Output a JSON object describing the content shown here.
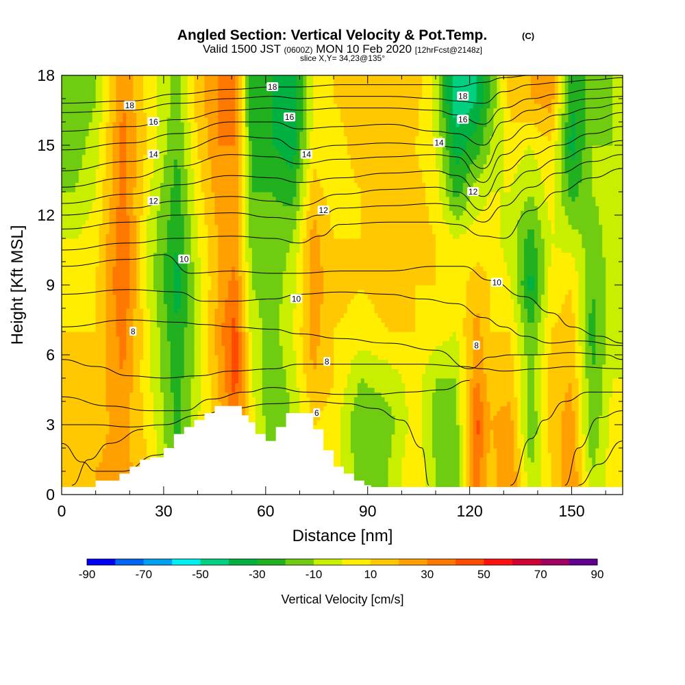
{
  "chart_data": {
    "type": "heatmap",
    "title": "Angled Section: Vertical Velocity & Pot.Temp.",
    "title_unit": "(C)",
    "subtitle_parts": [
      "Valid 1500 JST ",
      "(0600Z)",
      " MON 10 Feb 2020 ",
      "[12hrFcst@2148z]"
    ],
    "slice_text": "slice X,Y= 34,23@135°",
    "xlabel": "Distance [nm]",
    "ylabel": "Height [Kft MSL]",
    "xlim": [
      0,
      165
    ],
    "ylim": [
      0,
      18
    ],
    "xticks": [
      "0",
      "30",
      "60",
      "90",
      "120",
      "150"
    ],
    "yticks": [
      "0",
      "3",
      "6",
      "9",
      "12",
      "15",
      "18"
    ],
    "colorbar": {
      "label": "Vertical Velocity [cm/s]",
      "tick_labels": [
        "-90",
        "-70",
        "-50",
        "-30",
        "-10",
        "10",
        "30",
        "50",
        "70",
        "90"
      ],
      "colors": [
        "#0000f0",
        "#0064f0",
        "#00a0f0",
        "#00f0f0",
        "#00d080",
        "#00b040",
        "#20b020",
        "#70cc10",
        "#c8ee00",
        "#ffee00",
        "#ffc800",
        "#ffa000",
        "#ff7800",
        "#ff4b00",
        "#ff1010",
        "#d00030",
        "#a00060",
        "#600090"
      ]
    },
    "velocity_columns": [
      {
        "x": 4,
        "v": [
          15,
          15,
          10,
          10,
          5,
          0,
          -10,
          -15,
          -20
        ]
      },
      {
        "x": 10,
        "v": [
          20,
          15,
          15,
          10,
          10,
          5,
          0,
          -5,
          -10
        ]
      },
      {
        "x": 18,
        "v": [
          25,
          25,
          30,
          35,
          40,
          40,
          35,
          35,
          30
        ]
      },
      {
        "x": 26,
        "v": [
          10,
          5,
          0,
          0,
          -5,
          -5,
          0,
          5,
          5
        ]
      },
      {
        "x": 34,
        "v": [
          -20,
          -25,
          -25,
          -30,
          -35,
          -30,
          -25,
          -20,
          -15
        ]
      },
      {
        "x": 40,
        "v": [
          5,
          0,
          -5,
          -5,
          -5,
          0,
          5,
          10,
          15
        ]
      },
      {
        "x": 46,
        "v": [
          10,
          15,
          20,
          25,
          20,
          20,
          25,
          30,
          30
        ]
      },
      {
        "x": 51,
        "v": [
          25,
          35,
          45,
          45,
          35,
          25,
          25,
          30,
          30
        ]
      },
      {
        "x": 56,
        "v": [
          10,
          5,
          0,
          -5,
          -10,
          -15,
          -20,
          -25,
          -30
        ]
      },
      {
        "x": 62,
        "v": [
          -15,
          -20,
          -20,
          -15,
          -15,
          -15,
          -20,
          -30,
          -30
        ]
      },
      {
        "x": 68,
        "v": [
          -10,
          -10,
          -5,
          0,
          -5,
          -10,
          -25,
          -35,
          -40
        ]
      },
      {
        "x": 74,
        "v": [
          10,
          10,
          20,
          25,
          25,
          25,
          15,
          5,
          0
        ]
      },
      {
        "x": 80,
        "v": [
          5,
          5,
          10,
          10,
          15,
          10,
          5,
          5,
          10
        ]
      },
      {
        "x": 88,
        "v": [
          -15,
          -20,
          -10,
          5,
          10,
          10,
          10,
          15,
          15
        ]
      },
      {
        "x": 96,
        "v": [
          -10,
          -15,
          -5,
          10,
          15,
          15,
          10,
          15,
          20
        ]
      },
      {
        "x": 104,
        "v": [
          10,
          5,
          5,
          10,
          10,
          15,
          15,
          10,
          15
        ]
      },
      {
        "x": 110,
        "v": [
          -10,
          -15,
          -10,
          5,
          10,
          10,
          5,
          0,
          -5
        ]
      },
      {
        "x": 116,
        "v": [
          -15,
          -15,
          -10,
          0,
          5,
          0,
          -25,
          -35,
          -50
        ]
      },
      {
        "x": 122,
        "v": [
          35,
          45,
          30,
          25,
          15,
          5,
          -5,
          -25,
          -40
        ]
      },
      {
        "x": 126,
        "v": [
          15,
          20,
          15,
          10,
          10,
          5,
          0,
          -10,
          -20
        ]
      },
      {
        "x": 132,
        "v": [
          30,
          25,
          15,
          10,
          0,
          -5,
          0,
          5,
          15
        ]
      },
      {
        "x": 138,
        "v": [
          -10,
          -20,
          -15,
          -20,
          -35,
          -25,
          -10,
          0,
          20
        ]
      },
      {
        "x": 144,
        "v": [
          10,
          15,
          15,
          10,
          5,
          0,
          5,
          10,
          25
        ]
      },
      {
        "x": 150,
        "v": [
          30,
          25,
          20,
          15,
          10,
          -5,
          -25,
          -35,
          -30
        ]
      },
      {
        "x": 156,
        "v": [
          -10,
          -20,
          -20,
          -25,
          -20,
          -15,
          -10,
          -10,
          -15
        ]
      },
      {
        "x": 162,
        "v": [
          5,
          5,
          0,
          -5,
          -5,
          -5,
          -5,
          -10,
          -10
        ]
      }
    ],
    "velocity_heights": [
      1,
      3,
      5,
      7,
      9,
      11,
      13,
      15,
      17
    ],
    "theta_label_values": [
      "18",
      "16",
      "14",
      "12",
      "10",
      "8",
      "6"
    ],
    "theta_labels": [
      {
        "text": "18",
        "x": 20,
        "y": 16.7
      },
      {
        "text": "16",
        "x": 27,
        "y": 16.0
      },
      {
        "text": "14",
        "x": 27,
        "y": 14.6
      },
      {
        "text": "12",
        "x": 27,
        "y": 12.6
      },
      {
        "text": "10",
        "x": 36,
        "y": 10.1
      },
      {
        "text": "8",
        "x": 21,
        "y": 7.0
      },
      {
        "text": "18",
        "x": 62,
        "y": 17.5
      },
      {
        "text": "16",
        "x": 67,
        "y": 16.2
      },
      {
        "text": "14",
        "x": 72,
        "y": 14.6
      },
      {
        "text": "12",
        "x": 77,
        "y": 12.2
      },
      {
        "text": "10",
        "x": 69,
        "y": 8.4
      },
      {
        "text": "8",
        "x": 78,
        "y": 5.7
      },
      {
        "text": "6",
        "x": 75,
        "y": 3.5
      },
      {
        "text": "18",
        "x": 118,
        "y": 17.1
      },
      {
        "text": "16",
        "x": 118,
        "y": 16.1
      },
      {
        "text": "14",
        "x": 111,
        "y": 15.1
      },
      {
        "text": "12",
        "x": 121,
        "y": 13.0
      },
      {
        "text": "10",
        "x": 128,
        "y": 9.1
      },
      {
        "text": "8",
        "x": 122,
        "y": 6.4
      }
    ],
    "theta_contours": [
      {
        "x": [
          0,
          20,
          34,
          50,
          62,
          70,
          82,
          96,
          110,
          116,
          124,
          130,
          138,
          146,
          156,
          165
        ],
        "y": [
          16.8,
          16.9,
          17.2,
          17.4,
          17.5,
          17.5,
          17.6,
          17.6,
          17.6,
          17.5,
          17.7,
          17.9,
          18.0,
          18.0,
          18.0,
          18.0
        ]
      },
      {
        "x": [
          0,
          20,
          34,
          50,
          62,
          70,
          82,
          96,
          110,
          116,
          124,
          130,
          138,
          146,
          156,
          165
        ],
        "y": [
          16.4,
          16.5,
          16.8,
          17.0,
          17.1,
          17.0,
          17.1,
          17.1,
          17.0,
          16.9,
          16.8,
          17.3,
          17.6,
          17.7,
          17.8,
          17.9
        ]
      },
      {
        "x": [
          0,
          20,
          34,
          50,
          62,
          70,
          82,
          96,
          110,
          116,
          124,
          130,
          138,
          146,
          156,
          165
        ],
        "y": [
          15.6,
          15.8,
          16.1,
          16.5,
          16.6,
          16.5,
          16.6,
          16.6,
          16.5,
          16.3,
          15.9,
          16.6,
          17.0,
          17.2,
          17.4,
          17.5
        ]
      },
      {
        "x": [
          0,
          20,
          34,
          50,
          62,
          70,
          82,
          96,
          110,
          116,
          124,
          130,
          138,
          146,
          156,
          165
        ],
        "y": [
          14.8,
          15.1,
          15.5,
          16.0,
          16.0,
          15.7,
          15.8,
          15.9,
          15.6,
          15.5,
          15.0,
          16.0,
          16.5,
          16.8,
          17.0,
          17.1
        ]
      },
      {
        "x": [
          0,
          20,
          34,
          50,
          62,
          70,
          82,
          96,
          110,
          116,
          124,
          130,
          138,
          146,
          156,
          165
        ],
        "y": [
          13.9,
          14.3,
          14.8,
          15.4,
          15.3,
          14.8,
          15.0,
          15.1,
          15.0,
          14.9,
          14.0,
          15.2,
          15.9,
          16.3,
          16.6,
          16.8
        ]
      },
      {
        "x": [
          0,
          20,
          34,
          50,
          62,
          70,
          82,
          96,
          110,
          116,
          124,
          130,
          138,
          146,
          156,
          165
        ],
        "y": [
          13.2,
          13.6,
          14.1,
          14.6,
          14.5,
          14.2,
          14.4,
          14.5,
          14.6,
          14.5,
          13.4,
          14.6,
          15.3,
          15.7,
          16.1,
          16.4
        ]
      },
      {
        "x": [
          0,
          20,
          34,
          50,
          62,
          70,
          82,
          96,
          110,
          116,
          124,
          130,
          138,
          146,
          156,
          165
        ],
        "y": [
          12.5,
          12.9,
          13.3,
          13.7,
          13.6,
          13.4,
          13.6,
          13.8,
          13.9,
          13.7,
          12.8,
          13.9,
          14.6,
          15.0,
          15.5,
          15.8
        ]
      },
      {
        "x": [
          0,
          20,
          34,
          50,
          62,
          70,
          82,
          96,
          110,
          116,
          124,
          130,
          138,
          146,
          156,
          165
        ],
        "y": [
          12.0,
          12.3,
          12.6,
          12.8,
          12.6,
          12.4,
          12.9,
          13.1,
          13.2,
          13.0,
          12.2,
          13.2,
          13.9,
          14.4,
          14.9,
          15.2
        ]
      },
      {
        "x": [
          0,
          20,
          34,
          50,
          62,
          70,
          76,
          82,
          96,
          110,
          116,
          124,
          130,
          138,
          146,
          156,
          165
        ],
        "y": [
          11.4,
          11.7,
          12.0,
          12.1,
          11.9,
          11.8,
          12.0,
          12.3,
          12.4,
          12.5,
          12.4,
          11.7,
          12.4,
          13.2,
          13.8,
          14.3,
          14.6
        ]
      },
      {
        "x": [
          0,
          20,
          34,
          50,
          62,
          70,
          76,
          82,
          96,
          110,
          116,
          124,
          130,
          138,
          146,
          156,
          165
        ],
        "y": [
          10.5,
          10.8,
          11.0,
          11.1,
          11.0,
          10.8,
          11.1,
          11.6,
          11.7,
          11.7,
          11.6,
          11.1,
          11.0,
          12.2,
          13.0,
          13.6,
          14.0
        ]
      },
      {
        "x": [
          0,
          20,
          30,
          38,
          50,
          62,
          70,
          82,
          96,
          110,
          118,
          126,
          136,
          144,
          150,
          158,
          165
        ],
        "y": [
          9.8,
          10.1,
          10.3,
          9.5,
          9.6,
          9.5,
          9.5,
          9.6,
          9.6,
          9.8,
          9.8,
          9.2,
          8.5,
          7.8,
          7.2,
          6.8,
          6.5
        ]
      },
      {
        "x": [
          0,
          20,
          34,
          42,
          50,
          62,
          70,
          82,
          96,
          106,
          116,
          124,
          130,
          136,
          144,
          152,
          165
        ],
        "y": [
          8.6,
          8.8,
          8.7,
          8.3,
          8.3,
          8.4,
          8.6,
          8.7,
          8.6,
          8.4,
          8.2,
          7.6,
          7.2,
          6.8,
          6.5,
          6.6,
          6.4
        ]
      },
      {
        "x": [
          0,
          20,
          34,
          42,
          50,
          62,
          70,
          82,
          96,
          110,
          120,
          126,
          132,
          140,
          150,
          160,
          165
        ],
        "y": [
          7.2,
          7.5,
          7.4,
          7.3,
          7.2,
          7.1,
          6.9,
          6.7,
          6.5,
          6.2,
          5.4,
          5.9,
          6.0,
          6.0,
          6.1,
          6.0,
          5.8
        ]
      },
      {
        "x": [
          0,
          10,
          20,
          30,
          40,
          50,
          62,
          70,
          78,
          90,
          106,
          118,
          124,
          130,
          140,
          150,
          165
        ],
        "y": [
          5.8,
          5.5,
          5.1,
          5.0,
          5.1,
          5.3,
          5.4,
          5.6,
          5.6,
          5.6,
          5.6,
          5.5,
          5.4,
          5.3,
          5.4,
          5.5,
          5.4
        ]
      },
      {
        "x": [
          0,
          14,
          26,
          36,
          44,
          54,
          62,
          72,
          82,
          92,
          102,
          112,
          120
        ],
        "y": [
          4.2,
          3.8,
          3.6,
          3.6,
          4.1,
          4.4,
          4.6,
          4.4,
          4.3,
          4.3,
          4.4,
          4.5,
          4.9
        ]
      },
      {
        "x": [
          0,
          10,
          20,
          30,
          40,
          50,
          62,
          74,
          84,
          92,
          100,
          106,
          108
        ],
        "y": [
          3.0,
          3.0,
          2.9,
          3.0,
          3.4,
          3.7,
          3.9,
          4.0,
          3.9,
          3.7,
          3.2,
          2.0,
          0.4
        ]
      },
      {
        "x": [
          0,
          6,
          10,
          18,
          28,
          40
        ],
        "y": [
          2.2,
          1.4,
          1.0,
          1.0,
          1.7,
          2.6
        ]
      },
      {
        "x": [
          3,
          8,
          14,
          24
        ],
        "y": [
          0.4,
          1.5,
          2.2,
          2.8
        ]
      },
      {
        "x": [
          132,
          138,
          142,
          148,
          155,
          165
        ],
        "y": [
          0.4,
          2.4,
          3.2,
          4.0,
          4.4,
          4.4
        ]
      },
      {
        "x": [
          148,
          152,
          158,
          165
        ],
        "y": [
          0.4,
          2.0,
          3.3,
          3.6
        ]
      },
      {
        "x": [
          152,
          158,
          165
        ],
        "y": [
          0.4,
          1.3,
          2.3
        ]
      }
    ],
    "terrain": {
      "x": [
        10,
        14,
        17,
        20,
        23,
        26,
        30,
        33,
        36,
        39,
        42,
        45,
        47,
        49,
        51,
        53,
        55,
        57,
        60,
        63,
        66,
        69,
        71,
        74,
        77,
        80,
        83,
        86,
        89,
        91
      ],
      "y": [
        0.6,
        0.6,
        0.9,
        1.2,
        1.5,
        1.6,
        2.0,
        2.6,
        2.9,
        3.2,
        3.5,
        3.8,
        3.8,
        3.8,
        3.8,
        3.4,
        3.1,
        2.6,
        2.3,
        2.9,
        3.5,
        3.5,
        3.5,
        2.8,
        1.9,
        1.2,
        0.9,
        0.6,
        0.4,
        0.3
      ]
    }
  }
}
